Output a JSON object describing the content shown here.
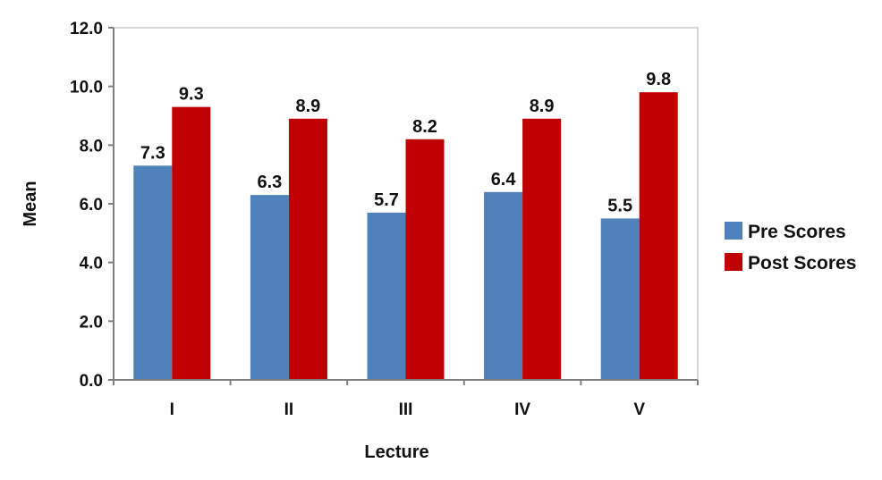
{
  "chart_data": {
    "type": "bar",
    "categories": [
      "I",
      "II",
      "III",
      "IV",
      "V"
    ],
    "series": [
      {
        "name": "Pre Scores",
        "values": [
          7.3,
          6.3,
          5.7,
          6.4,
          5.5
        ],
        "labels": [
          "7.3",
          "6.3",
          "5.7",
          "6.4",
          "5.5"
        ],
        "color": "#4f81bd"
      },
      {
        "name": "Post Scores",
        "values": [
          9.3,
          8.9,
          8.2,
          8.9,
          9.8
        ],
        "labels": [
          "9.3",
          "8.9",
          "8.2",
          "8.9",
          "9.8"
        ],
        "color": "#c00000"
      }
    ],
    "xlabel": "Lecture",
    "ylabel": "Mean",
    "ylim": [
      0,
      12
    ],
    "yticks": [
      "0.0",
      "2.0",
      "4.0",
      "6.0",
      "8.0",
      "10.0",
      "12.0"
    ],
    "grid": false,
    "legend_position": "right"
  }
}
